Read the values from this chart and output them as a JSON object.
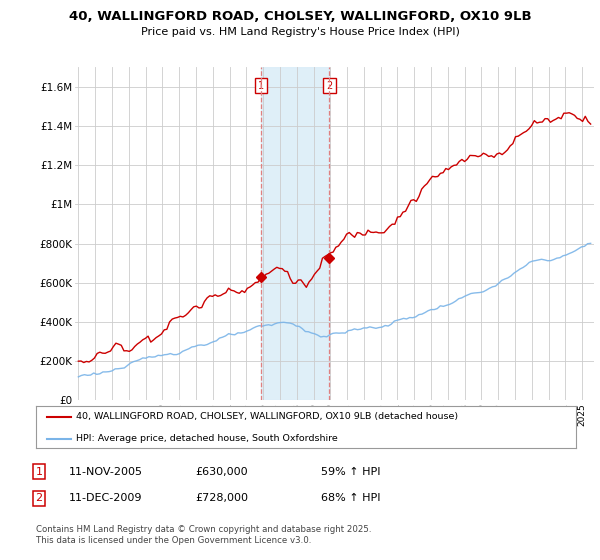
{
  "title": "40, WALLINGFORD ROAD, CHOLSEY, WALLINGFORD, OX10 9LB",
  "subtitle": "Price paid vs. HM Land Registry's House Price Index (HPI)",
  "sale1_date": "11-NOV-2005",
  "sale1_price": 630000,
  "sale1_label": "1",
  "sale2_date": "11-DEC-2009",
  "sale2_price": 728000,
  "sale2_label": "2",
  "legend_line1": "40, WALLINGFORD ROAD, CHOLSEY, WALLINGFORD, OX10 9LB (detached house)",
  "legend_line2": "HPI: Average price, detached house, South Oxfordshire",
  "footer": "Contains HM Land Registry data © Crown copyright and database right 2025.\nThis data is licensed under the Open Government Licence v3.0.",
  "red_color": "#cc0000",
  "blue_color": "#7ab4e8",
  "shade_color": "#dceef8",
  "vline_color": "#e08080",
  "background_color": "#ffffff",
  "grid_color": "#cccccc",
  "ylim": [
    0,
    1700000
  ],
  "yticks": [
    0,
    200000,
    400000,
    600000,
    800000,
    1000000,
    1200000,
    1400000,
    1600000
  ],
  "sale1_x": 2005.87,
  "sale2_x": 2009.95,
  "xstart": 1995,
  "xend": 2025
}
